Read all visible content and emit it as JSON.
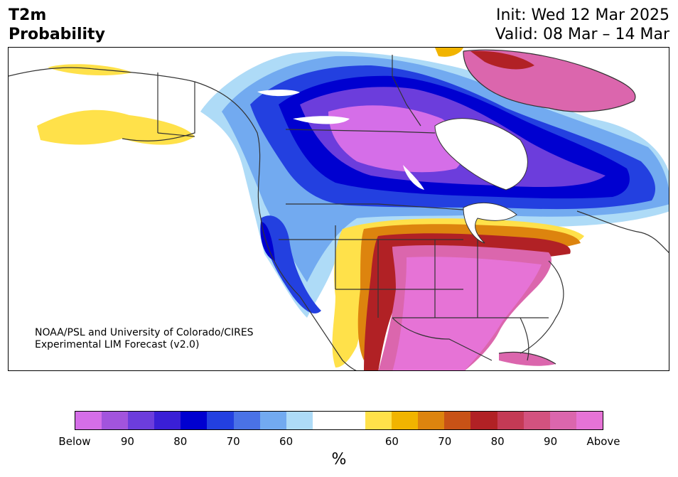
{
  "header": {
    "title_line1": "T2m",
    "title_line2": "Probability",
    "init": "Init: Wed 12 Mar 2025",
    "valid": "Valid: 08 Mar – 14 Mar"
  },
  "credit": {
    "line1": "NOAA/PSL and University of Colorado/CIRES",
    "line2": "Experimental LIM Forecast (v2.0)"
  },
  "colorbar": {
    "colors": [
      "#d56ee8",
      "#a254dd",
      "#6c3ddc",
      "#3a1fd6",
      "#0000d0",
      "#2340e0",
      "#4a72e6",
      "#72aaf0",
      "#aedbf7",
      "#ffffff",
      "#ffffff",
      "#ffe14a",
      "#f1b400",
      "#dd840e",
      "#c85216",
      "#b12125",
      "#c43a55",
      "#d3527f",
      "#db66ad",
      "#e673d6"
    ],
    "labels": [
      "Below",
      "90",
      "80",
      "70",
      "60",
      "60",
      "70",
      "80",
      "90",
      "Above"
    ],
    "unit": "%"
  },
  "legend_colors": {
    "below_deep": "#d56ee8",
    "below_mid": "#0000d0",
    "below_light": "#aedbf7",
    "neutral": "#ffffff",
    "above_light": "#ffe14a",
    "above_mid": "#b12125",
    "above_deep": "#e673d6"
  }
}
